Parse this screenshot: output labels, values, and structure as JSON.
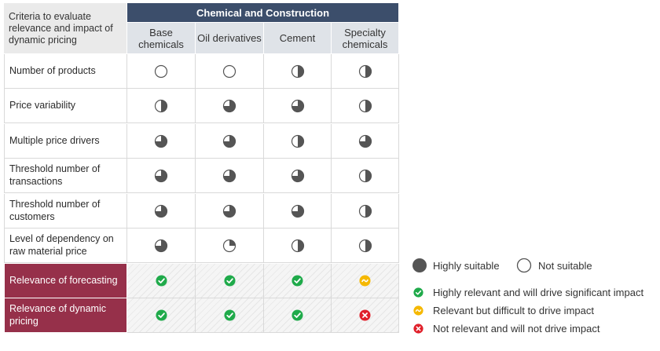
{
  "header": {
    "criteria_label": "Criteria to evaluate relevance and impact of dynamic pricing",
    "group_label": "Chemical and Construction",
    "columns": [
      "Base chemicals",
      "Oil derivatives",
      "Cement",
      "Specialty chemicals"
    ]
  },
  "rows": [
    {
      "label": "Number of products",
      "values": [
        0,
        0,
        2,
        2
      ]
    },
    {
      "label": "Price variability",
      "values": [
        2,
        3,
        3,
        2
      ]
    },
    {
      "label": "Multiple price drivers",
      "values": [
        3,
        3,
        2,
        3
      ]
    },
    {
      "label": "Threshold number of transactions",
      "values": [
        3,
        3,
        3,
        2
      ]
    },
    {
      "label": "Threshold number of customers",
      "values": [
        3,
        3,
        3,
        2
      ]
    },
    {
      "label": "Level of dependency on raw material price",
      "values": [
        3,
        1,
        2,
        2
      ]
    }
  ],
  "highlight_rows": [
    {
      "label": "Relevance of forecasting",
      "values": [
        "check",
        "check",
        "check",
        "tilde"
      ]
    },
    {
      "label": "Relevance of dynamic pricing",
      "values": [
        "check",
        "check",
        "check",
        "cross"
      ]
    }
  ],
  "legend": {
    "highly_suitable": "Highly suitable",
    "not_suitable": "Not suitable",
    "green": "Highly relevant and will drive significant impact",
    "yellow": "Relevant but difficult to drive impact",
    "red": "Not relevant and will not drive impact"
  },
  "colors": {
    "header_blue": "#3c4e6b",
    "subheader": "#dfe3e8",
    "highlight_row": "#96304a",
    "harvey": "#555555",
    "green": "#1faa4a",
    "yellow": "#f5b800",
    "red": "#e0202a"
  },
  "icons": {
    "quarter_levels": "0 = empty circle, 1 = quarter, 2 = half, 3 = three-quarter, 4 = full",
    "check": "check-icon",
    "tilde": "tilde-icon",
    "cross": "cross-icon"
  }
}
